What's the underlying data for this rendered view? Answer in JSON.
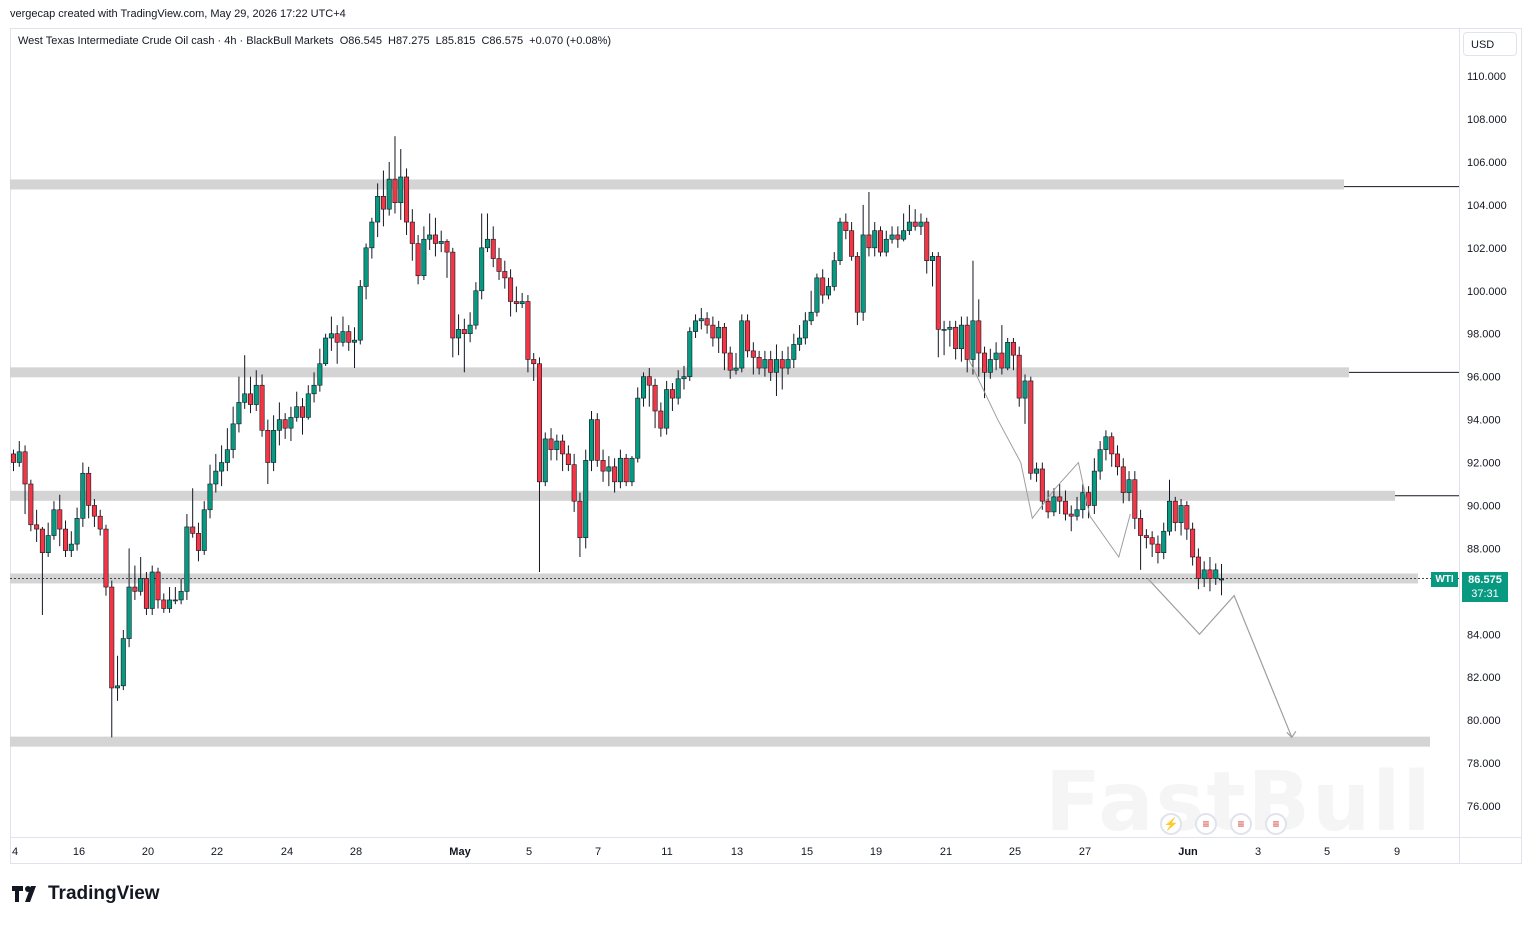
{
  "header": {
    "credit": "vergecap created with TradingView.com, May 29, 2026 17:22 UTC+4"
  },
  "legend": {
    "title": "West Texas Intermediate Crude Oil cash · 4h · BlackBull Markets",
    "open": "O86.545",
    "high": "H87.275",
    "low": "L85.815",
    "close": "C86.575",
    "change": "+0.070 (+0.08%)"
  },
  "currency": "USD",
  "price_tag": {
    "symbol": "WTI",
    "value": "86.575",
    "countdown": "37:31"
  },
  "brand": "TradingView",
  "watermark": "FastBull",
  "colors": {
    "up": "#089981",
    "down": "#f23645",
    "zone": "#cfcfcf",
    "level_line": "#131722",
    "projection": "#9e9e9e"
  },
  "chart_data": {
    "type": "candlestick",
    "title": "West Texas Intermediate Crude Oil cash",
    "timeframe": "4h",
    "y_ticks": [
      "110.000",
      "108.000",
      "106.000",
      "104.000",
      "102.000",
      "100.000",
      "98.000",
      "96.000",
      "94.000",
      "92.000",
      "90.000",
      "88.000",
      "86.000",
      "84.000",
      "82.000",
      "80.000",
      "78.000",
      "76.000"
    ],
    "ylim": [
      74.5,
      111.5
    ],
    "x_ticks": [
      "4",
      "16",
      "20",
      "22",
      "24",
      "28",
      "May",
      "5",
      "7",
      "11",
      "13",
      "15",
      "19",
      "21",
      "25",
      "27",
      "Jun",
      "3",
      "5",
      "9"
    ],
    "zones": [
      {
        "price": 104.95
      },
      {
        "price": 96.2
      },
      {
        "price": 90.45
      },
      {
        "price": 86.6
      },
      {
        "price": 79.0
      }
    ],
    "levels": [
      104.85,
      96.2,
      90.45,
      86.6
    ],
    "last_price": 86.575,
    "projection_path": [
      {
        "date": "May 28 20:00",
        "price": 86.6
      },
      {
        "date": "May 30 08:00",
        "price": 84.0
      },
      {
        "date": "May 31 08:00",
        "price": 85.8
      },
      {
        "date": "Jun 2 00:00",
        "price": 79.2
      }
    ],
    "history_path": [
      {
        "date": "May 23 16:00",
        "price": 96.8
      },
      {
        "date": "May 24 12:00",
        "price": 94.0
      },
      {
        "date": "May 25 04:00",
        "price": 92.0
      },
      {
        "date": "May 25 12:00",
        "price": 89.4
      },
      {
        "date": "May 26 04:00",
        "price": 90.8
      },
      {
        "date": "May 26 20:00",
        "price": 92.0
      },
      {
        "date": "May 27 04:00",
        "price": 89.5
      },
      {
        "date": "May 28 00:00",
        "price": 87.6
      },
      {
        "date": "May 28 08:00",
        "price": 89.6
      }
    ],
    "candles": [
      [
        92.4,
        92.0,
        92.6,
        91.6
      ],
      [
        92.0,
        92.5,
        93.0,
        91.8
      ],
      [
        92.5,
        91.0,
        92.8,
        89.6
      ],
      [
        91.0,
        89.1,
        91.2,
        88.8
      ],
      [
        89.1,
        88.9,
        89.8,
        88.3
      ],
      [
        88.9,
        87.8,
        89.0,
        84.9
      ],
      [
        87.8,
        88.6,
        89.2,
        87.6
      ],
      [
        88.6,
        89.8,
        90.2,
        88.4
      ],
      [
        89.8,
        88.9,
        90.5,
        88.1
      ],
      [
        88.9,
        87.9,
        89.3,
        87.6
      ],
      [
        87.9,
        88.2,
        88.8,
        87.6
      ],
      [
        88.2,
        89.4,
        89.9,
        87.9
      ],
      [
        89.4,
        91.5,
        92.0,
        89.0
      ],
      [
        91.5,
        90.0,
        91.8,
        89.4
      ],
      [
        90.0,
        89.5,
        90.3,
        89.0
      ],
      [
        89.5,
        88.9,
        89.8,
        88.6
      ],
      [
        88.9,
        86.2,
        89.1,
        85.8
      ],
      [
        86.2,
        81.5,
        86.5,
        79.2
      ],
      [
        81.5,
        81.6,
        83.0,
        80.9
      ],
      [
        81.6,
        83.8,
        84.2,
        81.4
      ],
      [
        83.8,
        86.2,
        88.0,
        83.4
      ],
      [
        86.2,
        86.0,
        87.2,
        85.6
      ],
      [
        86.0,
        86.6,
        87.6,
        85.8
      ],
      [
        86.6,
        85.2,
        86.9,
        84.9
      ],
      [
        85.2,
        86.9,
        87.2,
        84.9
      ],
      [
        86.9,
        85.6,
        87.1,
        85.2
      ],
      [
        85.6,
        85.2,
        85.9,
        85.0
      ],
      [
        85.2,
        85.6,
        86.2,
        85.0
      ],
      [
        85.6,
        85.6,
        86.2,
        85.4
      ],
      [
        85.6,
        86.0,
        86.6,
        85.4
      ],
      [
        86.0,
        89.0,
        89.6,
        85.6
      ],
      [
        89.0,
        88.7,
        90.8,
        88.5
      ],
      [
        88.7,
        87.9,
        89.2,
        87.4
      ],
      [
        87.9,
        89.8,
        90.2,
        87.7
      ],
      [
        89.8,
        91.0,
        91.9,
        89.4
      ],
      [
        91.0,
        91.6,
        92.4,
        90.6
      ],
      [
        91.6,
        92.0,
        92.8,
        90.9
      ],
      [
        92.0,
        92.6,
        93.6,
        91.6
      ],
      [
        92.6,
        93.8,
        94.6,
        92.2
      ],
      [
        93.8,
        94.8,
        96.0,
        93.4
      ],
      [
        94.8,
        95.2,
        97.0,
        94.5
      ],
      [
        95.2,
        94.7,
        96.0,
        94.3
      ],
      [
        94.7,
        95.6,
        96.3,
        94.4
      ],
      [
        95.6,
        93.5,
        96.1,
        93.2
      ],
      [
        93.5,
        92.0,
        94.0,
        91.0
      ],
      [
        92.0,
        93.5,
        94.2,
        91.6
      ],
      [
        93.5,
        94.0,
        94.8,
        92.8
      ],
      [
        94.0,
        93.6,
        94.3,
        93.1
      ],
      [
        93.6,
        94.1,
        94.6,
        93.0
      ],
      [
        94.1,
        94.6,
        95.3,
        93.9
      ],
      [
        94.6,
        94.1,
        95.0,
        93.3
      ],
      [
        94.1,
        95.2,
        95.6,
        94.0
      ],
      [
        95.2,
        95.6,
        96.2,
        94.8
      ],
      [
        95.6,
        96.6,
        97.3,
        95.3
      ],
      [
        96.6,
        97.8,
        98.0,
        96.5
      ],
      [
        97.8,
        98.0,
        98.8,
        97.2
      ],
      [
        98.0,
        97.6,
        98.4,
        96.6
      ],
      [
        97.6,
        98.1,
        98.8,
        97.4
      ],
      [
        98.1,
        97.6,
        98.4,
        97.2
      ],
      [
        97.6,
        97.7,
        98.3,
        96.4
      ],
      [
        97.7,
        100.2,
        100.5,
        97.5
      ],
      [
        100.2,
        102.0,
        102.2,
        99.6
      ],
      [
        102.0,
        103.2,
        103.4,
        101.5
      ],
      [
        103.2,
        104.4,
        105.0,
        102.5
      ],
      [
        104.4,
        103.8,
        105.6,
        103.0
      ],
      [
        103.8,
        105.2,
        106.0,
        103.5
      ],
      [
        105.2,
        104.1,
        107.2,
        103.6
      ],
      [
        104.1,
        105.3,
        106.6,
        103.3
      ],
      [
        105.3,
        103.2,
        105.7,
        102.6
      ],
      [
        103.2,
        102.2,
        103.8,
        101.4
      ],
      [
        102.2,
        100.7,
        102.6,
        100.3
      ],
      [
        100.7,
        102.4,
        103.0,
        100.5
      ],
      [
        102.4,
        102.6,
        103.6,
        101.9
      ],
      [
        102.6,
        102.2,
        103.4,
        101.6
      ],
      [
        102.2,
        102.3,
        102.8,
        101.8
      ],
      [
        102.3,
        101.8,
        102.4,
        100.6
      ],
      [
        101.8,
        97.8,
        102.0,
        96.9
      ],
      [
        97.8,
        98.2,
        98.9,
        97.0
      ],
      [
        98.2,
        98.0,
        98.7,
        96.2
      ],
      [
        98.0,
        98.4,
        99.0,
        97.6
      ],
      [
        98.4,
        100.0,
        100.4,
        98.2
      ],
      [
        100.0,
        102.0,
        103.6,
        99.6
      ],
      [
        102.0,
        102.4,
        103.6,
        101.8
      ],
      [
        102.4,
        101.5,
        103.0,
        101.1
      ],
      [
        101.5,
        100.9,
        102.0,
        100.5
      ],
      [
        100.9,
        100.6,
        101.4,
        100.1
      ],
      [
        100.6,
        99.5,
        101.0,
        98.8
      ],
      [
        99.5,
        99.4,
        100.2,
        99.0
      ],
      [
        99.4,
        99.5,
        99.9,
        99.2
      ],
      [
        99.5,
        96.8,
        99.8,
        96.2
      ],
      [
        96.8,
        96.6,
        97.1,
        95.8
      ],
      [
        96.6,
        91.1,
        96.9,
        86.9
      ],
      [
        91.1,
        93.1,
        93.4,
        90.9
      ],
      [
        93.1,
        92.6,
        93.6,
        92.1
      ],
      [
        92.6,
        93.0,
        93.3,
        92.1
      ],
      [
        93.0,
        92.4,
        93.3,
        91.6
      ],
      [
        92.4,
        91.9,
        92.8,
        91.6
      ],
      [
        91.9,
        90.2,
        92.4,
        89.7
      ],
      [
        90.2,
        88.5,
        90.6,
        87.6
      ],
      [
        88.5,
        92.1,
        92.6,
        88.0
      ],
      [
        92.1,
        94.0,
        94.4,
        91.6
      ],
      [
        94.0,
        92.1,
        94.3,
        91.8
      ],
      [
        92.1,
        91.6,
        92.6,
        91.1
      ],
      [
        91.6,
        91.8,
        92.3,
        90.9
      ],
      [
        91.8,
        91.1,
        92.2,
        90.6
      ],
      [
        91.1,
        92.2,
        92.6,
        90.8
      ],
      [
        92.2,
        91.1,
        92.4,
        90.9
      ],
      [
        91.1,
        92.2,
        92.3,
        90.9
      ],
      [
        92.2,
        95.0,
        95.5,
        92.0
      ],
      [
        95.0,
        96.0,
        96.2,
        94.6
      ],
      [
        96.0,
        95.6,
        96.4,
        94.6
      ],
      [
        95.6,
        94.4,
        95.9,
        93.6
      ],
      [
        94.4,
        93.6,
        94.8,
        93.2
      ],
      [
        93.6,
        95.4,
        95.8,
        93.3
      ],
      [
        95.4,
        95.0,
        95.7,
        94.4
      ],
      [
        95.0,
        95.9,
        96.3,
        94.7
      ],
      [
        95.9,
        96.0,
        96.5,
        95.4
      ],
      [
        96.0,
        98.1,
        98.3,
        95.8
      ],
      [
        98.1,
        98.6,
        98.9,
        97.8
      ],
      [
        98.6,
        98.7,
        99.2,
        98.2
      ],
      [
        98.7,
        98.4,
        99.0,
        98.0
      ],
      [
        98.4,
        97.8,
        98.8,
        97.4
      ],
      [
        97.8,
        98.3,
        98.6,
        97.1
      ],
      [
        98.3,
        97.1,
        98.5,
        96.3
      ],
      [
        97.1,
        96.3,
        97.4,
        95.9
      ],
      [
        96.3,
        96.4,
        97.1,
        96.1
      ],
      [
        96.4,
        98.6,
        98.9,
        96.2
      ],
      [
        98.6,
        97.2,
        98.9,
        96.9
      ],
      [
        97.2,
        96.9,
        97.6,
        96.1
      ],
      [
        96.9,
        96.4,
        97.2,
        96.1
      ],
      [
        96.4,
        96.8,
        97.2,
        96.0
      ],
      [
        96.8,
        96.2,
        97.2,
        95.8
      ],
      [
        96.2,
        96.8,
        97.5,
        95.1
      ],
      [
        96.8,
        96.4,
        97.2,
        95.4
      ],
      [
        96.4,
        96.8,
        97.4,
        96.1
      ],
      [
        96.8,
        97.5,
        98.0,
        96.4
      ],
      [
        97.5,
        97.8,
        98.4,
        97.2
      ],
      [
        97.8,
        98.6,
        99.0,
        97.5
      ],
      [
        98.6,
        99.0,
        100.0,
        98.4
      ],
      [
        99.0,
        100.6,
        100.8,
        98.8
      ],
      [
        100.6,
        99.8,
        101.0,
        99.4
      ],
      [
        99.8,
        100.2,
        100.6,
        99.6
      ],
      [
        100.2,
        101.4,
        101.8,
        100.0
      ],
      [
        101.4,
        103.2,
        103.4,
        101.2
      ],
      [
        103.2,
        102.8,
        103.6,
        102.4
      ],
      [
        102.8,
        101.6,
        103.2,
        101.4
      ],
      [
        101.6,
        99.0,
        101.8,
        98.4
      ],
      [
        99.0,
        102.6,
        104.0,
        98.6
      ],
      [
        102.6,
        102.0,
        104.6,
        101.6
      ],
      [
        102.0,
        102.8,
        103.2,
        101.6
      ],
      [
        102.8,
        101.8,
        103.0,
        101.6
      ],
      [
        101.8,
        102.4,
        102.8,
        101.6
      ],
      [
        102.4,
        102.6,
        103.0,
        102.2
      ],
      [
        102.6,
        102.4,
        103.0,
        102.0
      ],
      [
        102.4,
        102.8,
        103.6,
        102.3
      ],
      [
        102.8,
        103.2,
        104.0,
        102.6
      ],
      [
        103.2,
        103.0,
        103.8,
        102.8
      ],
      [
        103.0,
        103.2,
        103.6,
        102.6
      ],
      [
        103.2,
        101.4,
        103.4,
        100.8
      ],
      [
        101.4,
        101.6,
        101.8,
        100.2
      ],
      [
        101.6,
        98.2,
        101.8,
        96.9
      ],
      [
        98.2,
        98.2,
        98.6,
        97.0
      ],
      [
        98.2,
        98.3,
        98.6,
        97.4
      ],
      [
        98.3,
        97.3,
        98.6,
        96.8
      ],
      [
        97.3,
        98.4,
        98.8,
        96.7
      ],
      [
        98.4,
        96.8,
        98.8,
        96.2
      ],
      [
        96.8,
        98.6,
        101.4,
        96.1
      ],
      [
        98.6,
        97.1,
        99.6,
        96.0
      ],
      [
        97.1,
        96.2,
        97.4,
        95.0
      ],
      [
        96.2,
        96.8,
        97.3,
        95.9
      ],
      [
        96.8,
        97.1,
        97.6,
        96.3
      ],
      [
        97.1,
        96.4,
        98.4,
        96.1
      ],
      [
        96.4,
        97.6,
        97.8,
        96.3
      ],
      [
        97.6,
        97.0,
        97.8,
        96.3
      ],
      [
        97.0,
        95.0,
        97.4,
        94.6
      ],
      [
        95.0,
        95.8,
        96.1,
        93.8
      ],
      [
        95.8,
        91.5,
        96.0,
        91.2
      ],
      [
        91.5,
        91.7,
        92.0,
        91.1
      ],
      [
        91.7,
        90.2,
        92.0,
        89.8
      ],
      [
        90.2,
        89.7,
        90.7,
        89.4
      ],
      [
        89.7,
        90.4,
        90.8,
        89.5
      ],
      [
        90.4,
        90.2,
        91.0,
        89.6
      ],
      [
        90.2,
        89.6,
        90.7,
        89.3
      ],
      [
        89.6,
        89.5,
        90.0,
        88.8
      ],
      [
        89.5,
        89.8,
        90.4,
        89.3
      ],
      [
        89.8,
        90.6,
        91.0,
        89.4
      ],
      [
        90.6,
        90.0,
        90.9,
        89.4
      ],
      [
        90.0,
        91.6,
        92.2,
        89.6
      ],
      [
        91.6,
        92.6,
        93.0,
        91.2
      ],
      [
        92.6,
        93.2,
        93.5,
        92.1
      ],
      [
        93.2,
        92.4,
        93.4,
        91.8
      ],
      [
        92.4,
        91.8,
        92.8,
        91.4
      ],
      [
        91.8,
        90.6,
        92.2,
        90.1
      ],
      [
        90.6,
        91.2,
        91.6,
        90.2
      ],
      [
        91.2,
        89.4,
        91.6,
        88.9
      ],
      [
        89.4,
        88.6,
        89.8,
        87.0
      ],
      [
        88.6,
        88.5,
        88.9,
        88.0
      ],
      [
        88.5,
        88.2,
        88.8,
        87.6
      ],
      [
        88.2,
        87.8,
        88.6,
        87.3
      ],
      [
        87.8,
        88.8,
        89.2,
        87.5
      ],
      [
        88.8,
        90.2,
        91.2,
        88.6
      ],
      [
        90.2,
        89.2,
        90.4,
        88.8
      ],
      [
        89.2,
        90.0,
        90.3,
        88.6
      ],
      [
        90.0,
        88.9,
        90.2,
        88.4
      ],
      [
        88.9,
        87.6,
        89.2,
        87.2
      ],
      [
        87.6,
        86.6,
        88.0,
        86.1
      ],
      [
        86.6,
        87.0,
        87.4,
        86.2
      ],
      [
        87.0,
        86.6,
        87.6,
        86.0
      ],
      [
        86.6,
        87.0,
        87.3,
        86.3
      ],
      [
        86.545,
        86.575,
        87.275,
        85.815
      ]
    ]
  }
}
